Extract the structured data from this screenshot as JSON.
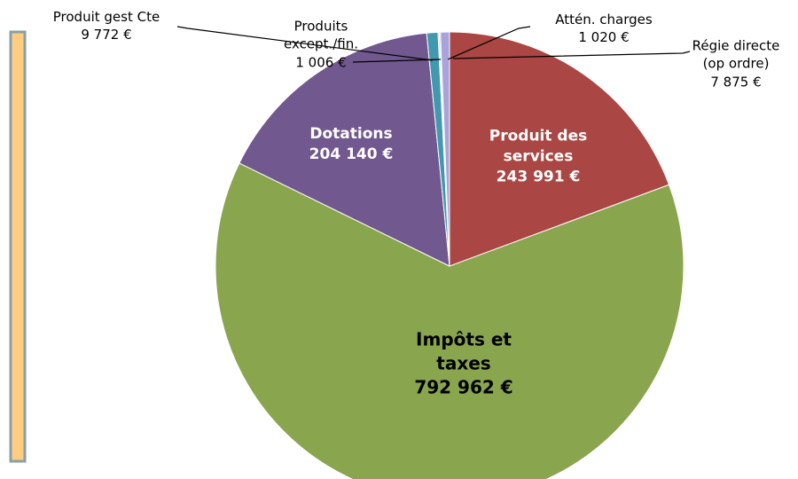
{
  "chart_data": {
    "type": "pie",
    "categories": [
      "Produit des services",
      "Impôts et taxes",
      "Dotations",
      "Produit gest Cte",
      "Produits except./fin.",
      "Attén. charges",
      "Régie directe (op ordre)"
    ],
    "values": [
      243991,
      792962,
      204140,
      9772,
      1006,
      1020,
      7875
    ],
    "value_labels": [
      "243 991 €",
      "792 962 €",
      "204 140 €",
      "9 772 €",
      "1 006 €",
      "1 020 €",
      "7 875 €"
    ],
    "colors": [
      "#aa4643",
      "#89a54e",
      "#71588f",
      "#4198af",
      "#db843d",
      "#93a9cf",
      "#a9a3dc"
    ]
  }
}
